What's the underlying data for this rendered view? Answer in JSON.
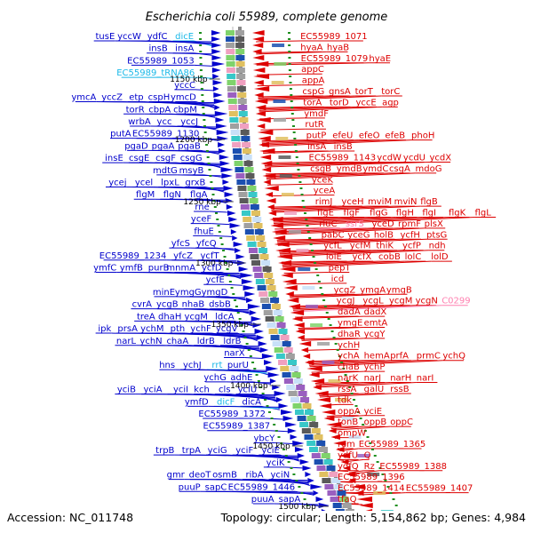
{
  "title": "Escherichia coli 55989, complete genome",
  "footer": {
    "accession": "Accession: NC_011748",
    "summary": "Topology: circular; Length: 5,154,862 bp; Genes: 4,984"
  },
  "colors": {
    "forward_strand": "#0000cc",
    "reverse_strand": "#dd0000",
    "rna_left": "#18b8e8",
    "rna_right": "#ff80b0",
    "backbone": "#888888",
    "tick": "#1f8f1f"
  },
  "ruler": [
    {
      "label": "1150 kbp"
    },
    {
      "label": "1200 kbp"
    },
    {
      "label": "1250 kbp"
    },
    {
      "label": "1300 kbp"
    },
    {
      "label": "1350 kbp"
    },
    {
      "label": "1400 kbp"
    },
    {
      "label": "1450 kbp"
    },
    {
      "label": "1500 kbp"
    }
  ],
  "left_rows": [
    [
      "tusE",
      "yccW",
      "ydfC",
      "dicE"
    ],
    [
      "insB",
      "insA"
    ],
    [
      "EC55989_1053"
    ],
    [
      "EC55989_tRNA86"
    ],
    [
      "yccC"
    ],
    [
      "ymcA",
      "yccZ",
      "etp",
      "cspH",
      "ymcD"
    ],
    [
      "torR",
      "cbpA",
      "cbpM"
    ],
    [
      "wrbA",
      "ycc",
      "yccJ"
    ],
    [
      "putA",
      "EC55989_1130"
    ],
    [
      "pgaD",
      "pgaA",
      "pgaB"
    ],
    [
      "insE",
      "csgE",
      "csgF",
      "csgG"
    ],
    [
      "mdtG",
      "msyB"
    ],
    [
      "ycej",
      "ycel",
      "lpxL",
      "grxB"
    ],
    [
      "flgM",
      "flgN",
      "flgA"
    ],
    [
      "rne"
    ],
    [
      "yceF"
    ],
    [
      "fhuE"
    ],
    [
      "yfcS",
      "yfcQ"
    ],
    [
      "EC55989_1234",
      "yfcZ",
      "ycfT"
    ],
    [
      "ymfC",
      "ymfB",
      "purB",
      "mnmA",
      "ycfD"
    ],
    [
      "ycfE"
    ],
    [
      "minE",
      "ymgG",
      "ymgD"
    ],
    [
      "cvrA",
      "ycgB",
      "nhaB",
      "dsbB"
    ],
    [
      "treA",
      "dhaH",
      "ycgM",
      "ldcA"
    ],
    [
      "ipk",
      "prsA",
      "ychM",
      "pth",
      "ychF",
      "ycgV"
    ],
    [
      "narL",
      "ychN",
      "chaA",
      "ldrB",
      "ldrB"
    ],
    [
      "narX"
    ],
    [
      "hns",
      "ychJ",
      "rrt",
      "purU"
    ],
    [
      "ychG",
      "adhE"
    ],
    [
      "yciB",
      "yciA",
      "yciI",
      "kch",
      "cls",
      "yciU"
    ],
    [
      "ymfD",
      "dicF",
      "dicA"
    ],
    [
      "EC55989_1372"
    ],
    [
      "EC55989_1387"
    ],
    [
      "ybcY"
    ],
    [
      "trpB",
      "trpA",
      "yciG",
      "yciF",
      "yciE"
    ],
    [
      "yciK"
    ],
    [
      "gmr",
      "deoT",
      "osmB",
      "ribA",
      "yciN"
    ],
    [
      "puuP",
      "sapC",
      "EC55989_1446"
    ],
    [
      "puuA",
      "sapA"
    ]
  ],
  "right_rows": [
    [
      "EC55989_1071"
    ],
    [
      "hyaA",
      "hyaB"
    ],
    [
      "EC55989_1079",
      "hyaE"
    ],
    [
      "appC"
    ],
    [
      "appA"
    ],
    [
      "cspG",
      "gnsA",
      "torT",
      "torC"
    ],
    [
      "torA",
      "torD",
      "yccE",
      "agp"
    ],
    [
      "ymdF"
    ],
    [
      "rutR"
    ],
    [
      "putP",
      "efeU",
      "efeO",
      "efeB",
      "phoH"
    ],
    [
      "insA",
      "insB"
    ],
    [
      "EC55989_1143",
      "ycdW",
      "ycdU",
      "ycdX"
    ],
    [
      "csgB",
      "ymdB",
      "ymdC",
      "csgA",
      "mdoG"
    ],
    [
      "yceK"
    ],
    [
      "yceA"
    ],
    [
      "rimJ",
      "yceH",
      "mviM",
      "mviN",
      "flgB"
    ],
    [
      "flgE",
      "flgF",
      "flgG",
      "flgH",
      "flgI",
      "flgK",
      "flgL"
    ],
    [
      "rluC",
      "ssrS",
      "yceD",
      "rpmF",
      "plsX"
    ],
    [
      "pabC",
      "yceG",
      "holB",
      "ycfH",
      "ptsG"
    ],
    [
      "ycfL",
      "ycfM",
      "thiK",
      "ycfP",
      "ndh"
    ],
    [
      "lolE",
      "ycfX",
      "cobB",
      "lolC",
      "lolD"
    ],
    [
      "pepT"
    ],
    [
      "icd"
    ],
    [
      "ycgZ",
      "ymgA",
      "ymgB"
    ],
    [
      "ycgJ",
      "ycgL",
      "ycgM",
      "ycgN",
      "C0299"
    ],
    [
      "dadA",
      "dadX"
    ],
    [
      "ymgE",
      "emtA"
    ],
    [
      "dhaR",
      "ycgY"
    ],
    [
      "ychH"
    ],
    [
      "ychA",
      "hemA",
      "prfA",
      "prmC",
      "ychQ"
    ],
    [
      "chaB",
      "ychP"
    ],
    [
      "narK",
      "narJ",
      "narH",
      "narI"
    ],
    [
      "rssA",
      "galU",
      "rssB"
    ],
    [
      "tdk"
    ],
    [
      "oppA",
      "yciE"
    ],
    [
      "tonB",
      "oppB",
      "oppC"
    ],
    [
      "ompW"
    ],
    [
      "rem",
      "EC55989_1365"
    ],
    [
      "ydfU",
      "Q"
    ],
    [
      "ydfQ",
      "Rz",
      "EC55989_1388"
    ],
    [
      "EC55989_1396"
    ],
    [
      "EC55989_1414",
      "EC55989_1407"
    ],
    [
      "tfaQ"
    ]
  ]
}
